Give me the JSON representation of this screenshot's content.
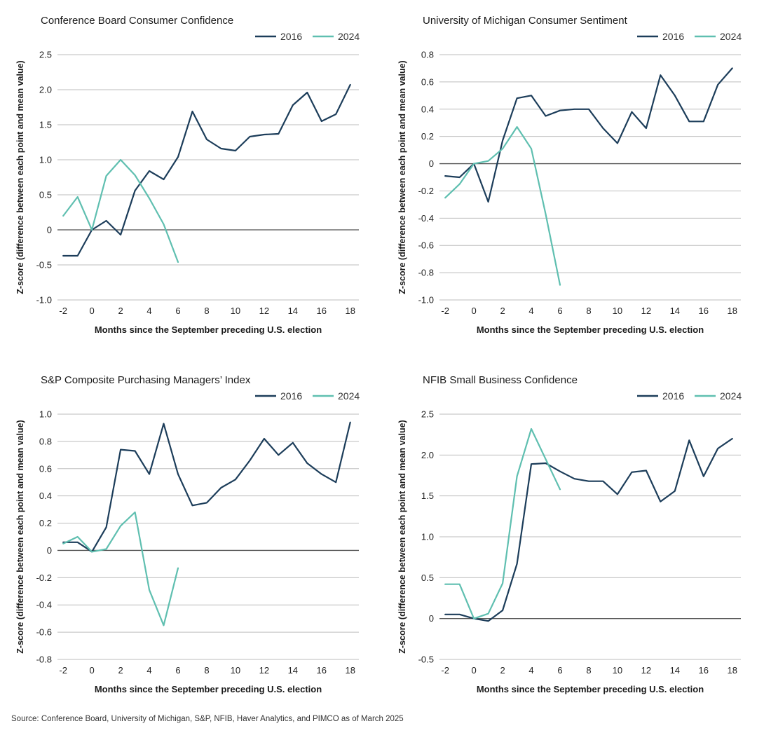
{
  "colors": {
    "2016": "#1c3d5a",
    "2024": "#5fbfb0"
  },
  "source": "Source: Conference Board, University of Michigan, S&P, NFIB, Haver Analytics, and PIMCO as of March 2025",
  "chart_data": [
    {
      "type": "line",
      "title": "Conference Board Consumer Confidence",
      "xlabel": "Months since the September preceding U.S. election",
      "ylabel": "Z-score (difference between each point and mean value)",
      "xlim": [
        -2.4,
        18.6
      ],
      "ylim": [
        -1.0,
        2.5
      ],
      "yticks": [
        "2.5",
        "2.0",
        "1.5",
        "1.0",
        "0.5",
        "0",
        "-0.5",
        "-1.0"
      ],
      "ytick_values": [
        2.5,
        2.0,
        1.5,
        1.0,
        0.5,
        0,
        -0.5,
        -1.0
      ],
      "xticks": [
        "-2",
        "0",
        "2",
        "4",
        "6",
        "8",
        "10",
        "12",
        "14",
        "16",
        "18"
      ],
      "xtick_values": [
        -2,
        0,
        2,
        4,
        6,
        8,
        10,
        12,
        14,
        16,
        18
      ],
      "legend": "top-right",
      "series": [
        {
          "name": "2016",
          "x": [
            -2,
            -1,
            0,
            1,
            2,
            3,
            4,
            5,
            6,
            7,
            8,
            9,
            10,
            11,
            12,
            13,
            14,
            15,
            16,
            17,
            18
          ],
          "y": [
            -0.37,
            -0.37,
            0.0,
            0.13,
            -0.07,
            0.56,
            0.84,
            0.72,
            1.04,
            1.69,
            1.29,
            1.16,
            1.13,
            1.33,
            1.36,
            1.37,
            1.78,
            1.96,
            1.55,
            1.65,
            2.07
          ]
        },
        {
          "name": "2024",
          "x": [
            -2,
            -1,
            0,
            1,
            2,
            3,
            4,
            5,
            6
          ],
          "y": [
            0.2,
            0.47,
            0.0,
            0.77,
            1.0,
            0.78,
            0.45,
            0.08,
            -0.46
          ]
        }
      ]
    },
    {
      "type": "line",
      "title": "University of Michigan Consumer Sentiment",
      "xlabel": "Months since the September preceding U.S. election",
      "ylabel": "Z-score (difference between each point and mean value)",
      "xlim": [
        -2.4,
        18.6
      ],
      "ylim": [
        -1.0,
        0.8
      ],
      "yticks": [
        "0.8",
        "0.6",
        "0.4",
        "0.2",
        "0",
        "-0.2",
        "-0.4",
        "-0.6",
        "-0.8",
        "-1.0"
      ],
      "ytick_values": [
        0.8,
        0.6,
        0.4,
        0.2,
        0,
        -0.2,
        -0.4,
        -0.6,
        -0.8,
        -1.0
      ],
      "xticks": [
        "-2",
        "0",
        "2",
        "4",
        "6",
        "8",
        "10",
        "12",
        "14",
        "16",
        "18"
      ],
      "xtick_values": [
        -2,
        0,
        2,
        4,
        6,
        8,
        10,
        12,
        14,
        16,
        18
      ],
      "legend": "top-right",
      "series": [
        {
          "name": "2016",
          "x": [
            -2,
            -1,
            0,
            1,
            2,
            3,
            4,
            5,
            6,
            7,
            8,
            9,
            10,
            11,
            12,
            13,
            14,
            15,
            16,
            17,
            18
          ],
          "y": [
            -0.09,
            -0.1,
            0.0,
            -0.28,
            0.17,
            0.48,
            0.5,
            0.35,
            0.39,
            0.4,
            0.4,
            0.26,
            0.15,
            0.38,
            0.26,
            0.65,
            0.5,
            0.31,
            0.31,
            0.58,
            0.7
          ]
        },
        {
          "name": "2024",
          "x": [
            -2,
            -1,
            0,
            1,
            2,
            3,
            4,
            5,
            6
          ],
          "y": [
            -0.25,
            -0.15,
            0.0,
            0.02,
            0.11,
            0.27,
            0.11,
            -0.37,
            -0.89
          ]
        }
      ]
    },
    {
      "type": "line",
      "title": "S&P Composite Purchasing Managers’ Index",
      "xlabel": "Months since the September preceding U.S. election",
      "ylabel": "Z-score (difference between each point and mean value)",
      "xlim": [
        -2.4,
        18.6
      ],
      "ylim": [
        -0.8,
        1.0
      ],
      "yticks": [
        "1.0",
        "0.8",
        "0.6",
        "0.4",
        "0.2",
        "0",
        "-0.2",
        "-0.4",
        "-0.6",
        "-0.8"
      ],
      "ytick_values": [
        1.0,
        0.8,
        0.6,
        0.4,
        0.2,
        0,
        -0.2,
        -0.4,
        -0.6,
        -0.8
      ],
      "xticks": [
        "-2",
        "0",
        "2",
        "4",
        "6",
        "8",
        "10",
        "12",
        "14",
        "16",
        "18"
      ],
      "xtick_values": [
        -2,
        0,
        2,
        4,
        6,
        8,
        10,
        12,
        14,
        16,
        18
      ],
      "legend": "top-right",
      "series": [
        {
          "name": "2016",
          "x": [
            -2,
            -1,
            0,
            1,
            2,
            3,
            4,
            5,
            6,
            7,
            8,
            9,
            10,
            11,
            12,
            13,
            14,
            15,
            16,
            17,
            18
          ],
          "y": [
            0.06,
            0.06,
            -0.01,
            0.17,
            0.74,
            0.73,
            0.56,
            0.93,
            0.56,
            0.33,
            0.35,
            0.46,
            0.52,
            0.66,
            0.82,
            0.7,
            0.79,
            0.64,
            0.56,
            0.5,
            0.94
          ]
        },
        {
          "name": "2024",
          "x": [
            -2,
            -1,
            0,
            1,
            2,
            3,
            4,
            5,
            6
          ],
          "y": [
            0.05,
            0.1,
            -0.01,
            0.01,
            0.18,
            0.28,
            -0.29,
            -0.55,
            -0.13
          ]
        }
      ]
    },
    {
      "type": "line",
      "title": "NFIB Small Business Confidence",
      "xlabel": "Months since the September preceding U.S. election",
      "ylabel": "Z-score (difference between each point and mean value)",
      "xlim": [
        -2.4,
        18.6
      ],
      "ylim": [
        -0.5,
        2.5
      ],
      "yticks": [
        "2.5",
        "2.0",
        "1.5",
        "1.0",
        "0.5",
        "0",
        "-0.5"
      ],
      "ytick_values": [
        2.5,
        2.0,
        1.5,
        1.0,
        0.5,
        0,
        -0.5
      ],
      "xticks": [
        "-2",
        "0",
        "2",
        "4",
        "6",
        "8",
        "10",
        "12",
        "14",
        "16",
        "18"
      ],
      "xtick_values": [
        -2,
        0,
        2,
        4,
        6,
        8,
        10,
        12,
        14,
        16,
        18
      ],
      "legend": "top-right",
      "series": [
        {
          "name": "2016",
          "x": [
            -2,
            -1,
            0,
            1,
            2,
            3,
            4,
            5,
            6,
            7,
            8,
            9,
            10,
            11,
            12,
            13,
            14,
            15,
            16,
            17,
            18
          ],
          "y": [
            0.05,
            0.05,
            0.0,
            -0.03,
            0.1,
            0.67,
            1.89,
            1.9,
            1.8,
            1.71,
            1.68,
            1.68,
            1.52,
            1.79,
            1.81,
            1.43,
            1.56,
            2.18,
            1.74,
            2.08,
            2.2
          ]
        },
        {
          "name": "2024",
          "x": [
            -2,
            -1,
            0,
            1,
            2,
            3,
            4,
            5,
            6
          ],
          "y": [
            0.42,
            0.42,
            0.0,
            0.06,
            0.43,
            1.74,
            2.32,
            1.95,
            1.58
          ]
        }
      ]
    }
  ]
}
